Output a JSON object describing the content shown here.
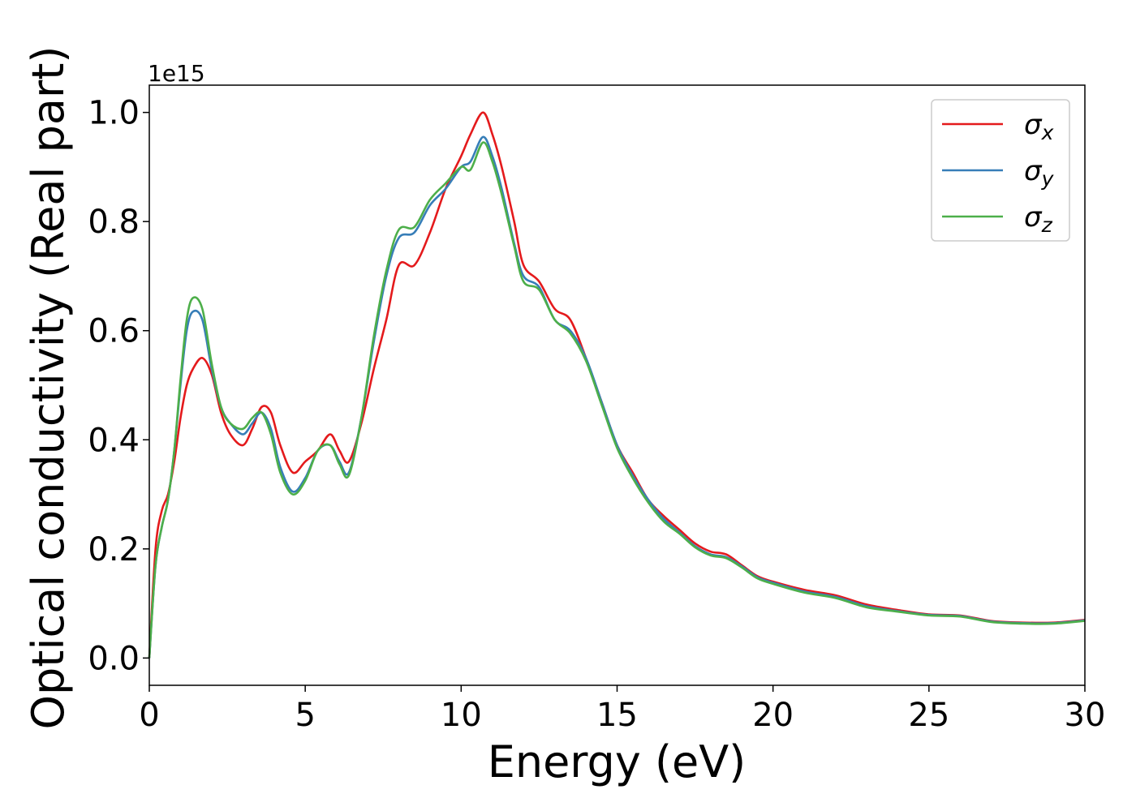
{
  "chart_data": {
    "type": "line",
    "title": "",
    "xlabel": "Energy (eV)",
    "ylabel": "Optical conductivity (Real part)",
    "y_offset_label": "1e15",
    "xlim": [
      0,
      30
    ],
    "ylim": [
      -0.05,
      1.05
    ],
    "x_ticks": [
      0,
      5,
      10,
      15,
      20,
      25,
      30
    ],
    "x_tick_labels": [
      "0",
      "5",
      "10",
      "15",
      "20",
      "25",
      "30"
    ],
    "y_ticks": [
      0.0,
      0.2,
      0.4,
      0.6,
      0.8,
      1.0
    ],
    "y_tick_labels": [
      "0.0",
      "0.2",
      "0.4",
      "0.6",
      "0.8",
      "1.0"
    ],
    "grid": false,
    "legend_position": "top-right",
    "x": [
      0,
      0.2,
      0.4,
      0.6,
      0.8,
      1.0,
      1.2,
      1.4,
      1.7,
      2.0,
      2.3,
      2.6,
      3.0,
      3.3,
      3.6,
      3.9,
      4.2,
      4.6,
      5.0,
      5.4,
      5.8,
      6.1,
      6.4,
      6.8,
      7.2,
      7.6,
      8.0,
      8.5,
      9.0,
      9.5,
      10.0,
      10.3,
      10.7,
      11.0,
      11.3,
      11.7,
      12.0,
      12.5,
      13.0,
      13.5,
      14.0,
      14.5,
      15.0,
      15.5,
      16.0,
      16.5,
      17.0,
      17.5,
      18.0,
      18.5,
      19.0,
      19.5,
      20.0,
      21.0,
      22.0,
      23.0,
      24.0,
      25.0,
      26.0,
      27.0,
      28.0,
      29.0,
      30.0
    ],
    "series": [
      {
        "name": "σx",
        "color": "#e41a1c",
        "values": [
          0.0,
          0.2,
          0.27,
          0.3,
          0.36,
          0.44,
          0.5,
          0.53,
          0.55,
          0.52,
          0.45,
          0.41,
          0.39,
          0.42,
          0.46,
          0.45,
          0.39,
          0.34,
          0.36,
          0.38,
          0.41,
          0.38,
          0.36,
          0.43,
          0.53,
          0.62,
          0.72,
          0.72,
          0.78,
          0.86,
          0.92,
          0.96,
          1.0,
          0.96,
          0.9,
          0.8,
          0.72,
          0.69,
          0.64,
          0.62,
          0.55,
          0.47,
          0.39,
          0.34,
          0.29,
          0.26,
          0.235,
          0.21,
          0.195,
          0.19,
          0.17,
          0.15,
          0.14,
          0.125,
          0.115,
          0.098,
          0.088,
          0.08,
          0.078,
          0.068,
          0.065,
          0.065,
          0.07
        ]
      },
      {
        "name": "σy",
        "color": "#377eb8",
        "values": [
          0.0,
          0.17,
          0.24,
          0.29,
          0.38,
          0.5,
          0.6,
          0.635,
          0.62,
          0.53,
          0.46,
          0.43,
          0.41,
          0.43,
          0.45,
          0.42,
          0.35,
          0.305,
          0.33,
          0.38,
          0.39,
          0.36,
          0.34,
          0.44,
          0.58,
          0.7,
          0.77,
          0.78,
          0.83,
          0.86,
          0.9,
          0.91,
          0.955,
          0.92,
          0.86,
          0.76,
          0.7,
          0.68,
          0.62,
          0.6,
          0.55,
          0.47,
          0.39,
          0.335,
          0.29,
          0.255,
          0.23,
          0.205,
          0.19,
          0.185,
          0.168,
          0.148,
          0.138,
          0.122,
          0.112,
          0.095,
          0.086,
          0.079,
          0.077,
          0.067,
          0.064,
          0.064,
          0.069
        ]
      },
      {
        "name": "σz",
        "color": "#4daf4a",
        "values": [
          0.0,
          0.17,
          0.24,
          0.29,
          0.38,
          0.51,
          0.62,
          0.66,
          0.64,
          0.54,
          0.46,
          0.43,
          0.42,
          0.44,
          0.45,
          0.41,
          0.34,
          0.3,
          0.325,
          0.38,
          0.39,
          0.355,
          0.335,
          0.44,
          0.59,
          0.71,
          0.785,
          0.79,
          0.84,
          0.87,
          0.9,
          0.895,
          0.945,
          0.91,
          0.85,
          0.755,
          0.69,
          0.675,
          0.62,
          0.595,
          0.545,
          0.465,
          0.385,
          0.33,
          0.285,
          0.25,
          0.228,
          0.203,
          0.188,
          0.183,
          0.166,
          0.146,
          0.136,
          0.12,
          0.11,
          0.093,
          0.085,
          0.078,
          0.076,
          0.066,
          0.063,
          0.063,
          0.068
        ]
      }
    ]
  }
}
